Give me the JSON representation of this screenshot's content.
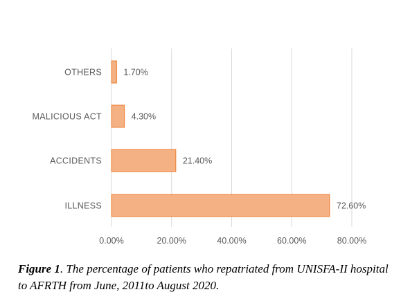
{
  "chart_data": {
    "type": "bar",
    "orientation": "horizontal",
    "categories": [
      "ILLNESS",
      "ACCIDENTS",
      "MALICIOUS ACT",
      "OTHERS"
    ],
    "values": [
      72.6,
      21.4,
      4.3,
      1.7
    ],
    "data_labels": [
      "72.60%",
      "21.40%",
      "4.30%",
      "1.70%"
    ],
    "x_ticks": [
      "0.00%",
      "20.00%",
      "40.00%",
      "60.00%",
      "80.00%"
    ],
    "xlim": [
      0,
      80
    ],
    "grid": true,
    "legend": "none",
    "title": "",
    "xlabel": "",
    "ylabel": ""
  },
  "caption": {
    "lead": "Figure 1",
    "text": ". The percentage of patients who repatriated from UNISFA-II hospital to AFRTH from June, 2011to August 2020."
  },
  "colors": {
    "bar_fill": "#f4b183",
    "bar_stroke": "#ed7d31",
    "grid": "#d9d9d9",
    "label_text": "#595959"
  }
}
